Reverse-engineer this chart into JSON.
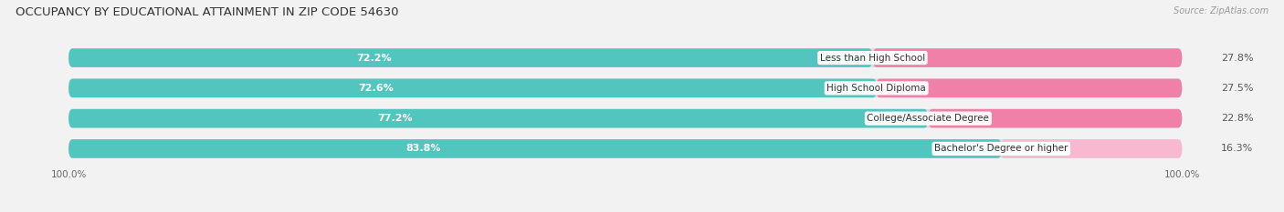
{
  "title": "OCCUPANCY BY EDUCATIONAL ATTAINMENT IN ZIP CODE 54630",
  "source": "Source: ZipAtlas.com",
  "categories": [
    "Less than High School",
    "High School Diploma",
    "College/Associate Degree",
    "Bachelor's Degree or higher"
  ],
  "owner_pct": [
    72.2,
    72.6,
    77.2,
    83.8
  ],
  "renter_pct": [
    27.8,
    27.5,
    22.8,
    16.3
  ],
  "owner_color": "#52C5BE",
  "renter_color": "#F080A8",
  "renter_color_light": "#F8B8CF",
  "bg_color": "#f2f2f2",
  "bar_bg_color": "#dcdcdc",
  "title_fontsize": 9.5,
  "label_fontsize": 8,
  "cat_fontsize": 7.5,
  "source_fontsize": 7,
  "legend_fontsize": 8
}
